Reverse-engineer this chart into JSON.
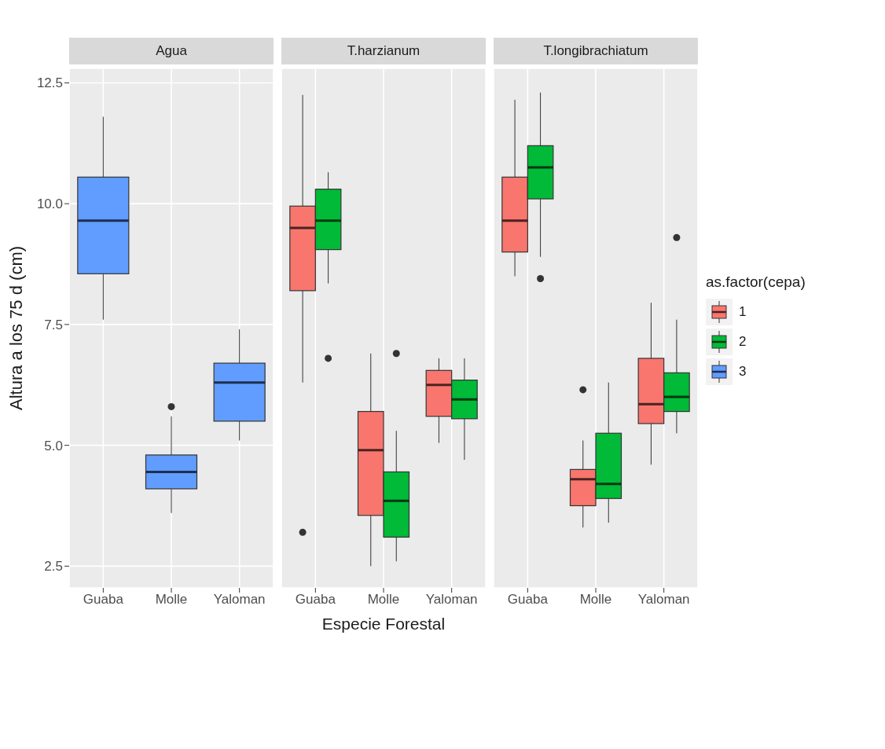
{
  "chart_data": [
    {
      "type": "box",
      "title": "Agua",
      "ylabel": "Altura a los 75 d (cm)",
      "categories": [
        "Guaba",
        "Molle",
        "Yaloman"
      ],
      "ylim": [
        2.05,
        12.8
      ],
      "yticks": [
        2.5,
        {
          "value": 5,
          "label": "5.0"
        },
        7.5,
        {
          "value": 10,
          "label": "10.0"
        },
        12.5
      ],
      "grid": true,
      "series": [
        {
          "color": "#619cff",
          "boxes": [
            {
              "low": 7.6,
              "q1": 8.55,
              "median": 9.65,
              "q3": 10.55,
              "high": 11.8
            },
            {
              "low": 3.6,
              "q1": 4.1,
              "median": 4.45,
              "q3": 4.8,
              "high": 5.6,
              "outliers": [
                5.8
              ]
            },
            {
              "low": 5.1,
              "q1": 5.5,
              "median": 6.3,
              "q3": 6.7,
              "high": 7.4
            }
          ]
        }
      ]
    },
    {
      "type": "box",
      "title": "T.harzianum",
      "xlabel": "Especie Forestal",
      "categories": [
        "Guaba",
        "Molle",
        "Yaloman"
      ],
      "ylim": [
        2.05,
        12.8
      ],
      "grid": true,
      "tick_labels": "x",
      "series": [
        {
          "color": "#f8766d",
          "boxes": [
            {
              "low": 6.3,
              "q1": 8.2,
              "median": 9.5,
              "q3": 9.95,
              "high": 12.25,
              "outliers": [
                3.2
              ]
            },
            {
              "low": 2.5,
              "q1": 3.55,
              "median": 4.9,
              "q3": 5.7,
              "high": 6.9
            },
            {
              "low": 5.05,
              "q1": 5.6,
              "median": 6.25,
              "q3": 6.55,
              "high": 6.8
            }
          ]
        },
        {
          "color": "#00ba38",
          "boxes": [
            {
              "low": 8.35,
              "q1": 9.05,
              "median": 9.65,
              "q3": 10.3,
              "high": 10.65,
              "outliers": [
                6.8
              ]
            },
            {
              "low": 2.6,
              "q1": 3.1,
              "median": 3.85,
              "q3": 4.45,
              "high": 5.3,
              "outliers": [
                6.9
              ]
            },
            {
              "low": 4.7,
              "q1": 5.55,
              "median": 5.95,
              "q3": 6.35,
              "high": 6.8
            }
          ]
        }
      ]
    },
    {
      "type": "box",
      "title": "T.longibrachiatum",
      "categories": [
        "Guaba",
        "Molle",
        "Yaloman"
      ],
      "ylim": [
        2.05,
        12.8
      ],
      "grid": true,
      "tick_labels": "x",
      "legend": "right",
      "legend_title": "as.factor(cepa)",
      "series": [
        {
          "name": "1",
          "color": "#f8766d",
          "boxes": [
            {
              "low": 8.5,
              "q1": 9.0,
              "median": 9.65,
              "q3": 10.55,
              "high": 12.15
            },
            {
              "low": 3.3,
              "q1": 3.75,
              "median": 4.3,
              "q3": 4.5,
              "high": 5.1,
              "outliers": [
                6.15
              ]
            },
            {
              "low": 4.6,
              "q1": 5.45,
              "median": 5.85,
              "q3": 6.8,
              "high": 7.95
            }
          ]
        },
        {
          "name": "2",
          "color": "#00ba38",
          "boxes": [
            {
              "low": 8.9,
              "q1": 10.1,
              "median": 10.75,
              "q3": 11.2,
              "high": 12.3,
              "outliers": [
                8.45
              ]
            },
            {
              "low": 3.4,
              "q1": 3.9,
              "median": 4.2,
              "q3": 5.25,
              "high": 6.3
            },
            {
              "low": 5.25,
              "q1": 5.7,
              "median": 6.0,
              "q3": 6.5,
              "high": 7.6,
              "outliers": [
                9.3
              ]
            }
          ]
        },
        {
          "name": "3",
          "color": "#619cff",
          "boxes": [
            null,
            null,
            null
          ]
        }
      ]
    }
  ]
}
